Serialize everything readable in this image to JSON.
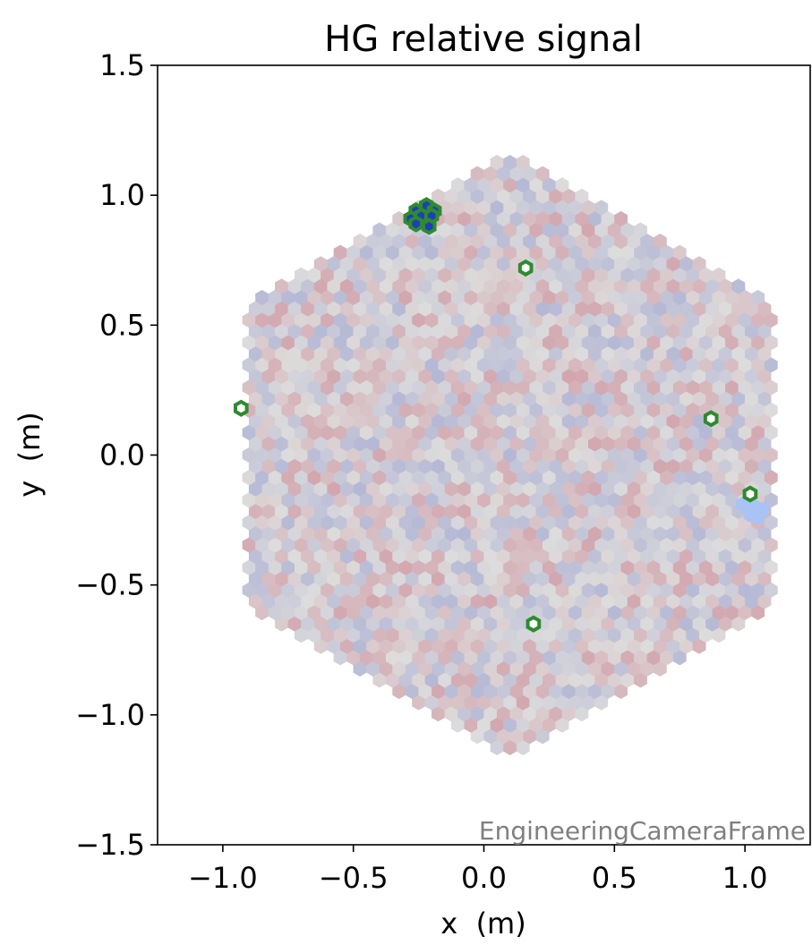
{
  "chart_data": {
    "type": "heatmap",
    "title": "HG relative signal",
    "xlabel": "x  (m)",
    "ylabel": "y  (m)",
    "xlim": [
      -1.25,
      1.25
    ],
    "ylim": [
      -1.5,
      1.5
    ],
    "xticks": [
      -1.0,
      -0.5,
      0.0,
      0.5,
      1.0
    ],
    "xtick_labels": [
      "−1.0",
      "−0.5",
      "0.0",
      "0.5",
      "1.0"
    ],
    "yticks": [
      -1.5,
      -1.0,
      -0.5,
      0.0,
      0.5,
      1.0,
      1.5
    ],
    "ytick_labels": [
      "−1.5",
      "−1.0",
      "−0.5",
      "0.0",
      "0.5",
      "1.0",
      "1.5"
    ],
    "frame_label": "EngineeringCameraFrame",
    "grid": false,
    "camera": {
      "shape": "hexagon",
      "center": [
        0.1,
        0.0
      ],
      "vertex_radius": 1.18,
      "pixel_pitch": 0.05,
      "colormap": "coolwarm",
      "value_range": [
        -1,
        1
      ]
    },
    "highlighted_pixels": [
      {
        "x": -0.26,
        "y": 0.94
      },
      {
        "x": -0.22,
        "y": 0.96
      },
      {
        "x": -0.19,
        "y": 0.94
      },
      {
        "x": -0.28,
        "y": 0.91
      },
      {
        "x": -0.24,
        "y": 0.92
      },
      {
        "x": -0.2,
        "y": 0.92
      },
      {
        "x": -0.26,
        "y": 0.89
      },
      {
        "x": -0.21,
        "y": 0.88
      },
      {
        "x": 0.16,
        "y": 0.72
      },
      {
        "x": -0.93,
        "y": 0.18
      },
      {
        "x": 0.87,
        "y": 0.14
      },
      {
        "x": 1.02,
        "y": -0.15
      },
      {
        "x": 0.19,
        "y": -0.65
      }
    ],
    "low_signal_cluster": [
      {
        "x": 0.99,
        "y": -0.19
      },
      {
        "x": 1.04,
        "y": -0.2
      },
      {
        "x": 1.07,
        "y": -0.21
      },
      {
        "x": 1.05,
        "y": -0.24
      },
      {
        "x": 1.02,
        "y": -0.23
      }
    ],
    "colors": {
      "highlight_edge": "#2e8b2e",
      "highlight_fill_dark": "#1f3fb8",
      "low_signal": "#a9c3f5",
      "neutral": "#dcdcdc"
    }
  }
}
